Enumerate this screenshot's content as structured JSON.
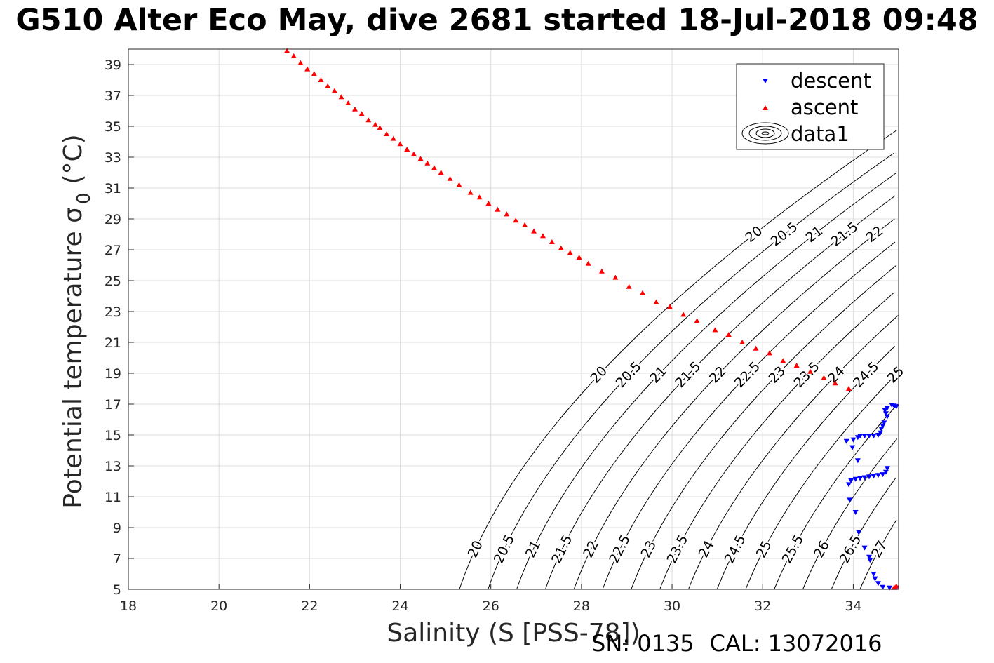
{
  "chart_data": {
    "type": "scatter",
    "title": "G510 Alter Eco May, dive 2681 started 18-Jul-2018 09:48",
    "xlabel": "Salinity (S [PSS-78])",
    "ylabel": "Potential temperature σ",
    "ylabel_sub": "0",
    "ylabel_unit": "(°C)",
    "xlim": [
      18,
      35
    ],
    "ylim": [
      5,
      40
    ],
    "xticks": [
      18,
      20,
      22,
      24,
      26,
      28,
      30,
      32,
      34
    ],
    "yticks": [
      5,
      7,
      9,
      11,
      13,
      15,
      17,
      19,
      21,
      23,
      25,
      27,
      29,
      31,
      33,
      35,
      37,
      39
    ],
    "grid": true,
    "legend_position": "top-right",
    "legend": [
      "descent",
      "ascent",
      "data1"
    ],
    "series": [
      {
        "name": "descent",
        "color": "#0000ff",
        "marker": "triangle-down",
        "points": [
          [
            34.85,
            16.95
          ],
          [
            34.9,
            16.9
          ],
          [
            34.95,
            16.85
          ],
          [
            34.75,
            16.75
          ],
          [
            34.7,
            16.6
          ],
          [
            34.72,
            16.4
          ],
          [
            34.75,
            16.2
          ],
          [
            34.68,
            15.8
          ],
          [
            34.65,
            15.6
          ],
          [
            34.62,
            15.4
          ],
          [
            34.6,
            15.15
          ],
          [
            34.55,
            15.0
          ],
          [
            34.45,
            14.95
          ],
          [
            34.35,
            14.95
          ],
          [
            34.25,
            14.95
          ],
          [
            34.15,
            14.95
          ],
          [
            34.1,
            14.85
          ],
          [
            34.0,
            14.7
          ],
          [
            33.85,
            14.6
          ],
          [
            33.98,
            14.2
          ],
          [
            34.1,
            13.35
          ],
          [
            34.75,
            12.85
          ],
          [
            34.72,
            12.6
          ],
          [
            34.65,
            12.45
          ],
          [
            34.55,
            12.4
          ],
          [
            34.45,
            12.35
          ],
          [
            34.35,
            12.3
          ],
          [
            34.25,
            12.25
          ],
          [
            34.15,
            12.2
          ],
          [
            34.05,
            12.15
          ],
          [
            33.95,
            12.05
          ],
          [
            33.9,
            11.8
          ],
          [
            33.92,
            10.8
          ],
          [
            34.05,
            10.0
          ],
          [
            34.12,
            8.7
          ],
          [
            34.25,
            7.7
          ],
          [
            34.35,
            7.1
          ],
          [
            34.37,
            6.9
          ],
          [
            34.45,
            6.0
          ],
          [
            34.48,
            5.7
          ],
          [
            34.55,
            5.4
          ],
          [
            34.65,
            5.15
          ],
          [
            34.8,
            5.1
          ],
          [
            34.95,
            5.1
          ]
        ]
      },
      {
        "name": "ascent",
        "color": "#ff0000",
        "marker": "triangle-up",
        "points": [
          [
            21.5,
            39.9
          ],
          [
            21.65,
            39.55
          ],
          [
            21.8,
            39.1
          ],
          [
            21.95,
            38.7
          ],
          [
            22.1,
            38.4
          ],
          [
            22.25,
            38.0
          ],
          [
            22.4,
            37.6
          ],
          [
            22.55,
            37.3
          ],
          [
            22.7,
            36.9
          ],
          [
            22.85,
            36.5
          ],
          [
            23.0,
            36.1
          ],
          [
            23.15,
            35.8
          ],
          [
            23.3,
            35.4
          ],
          [
            23.45,
            35.1
          ],
          [
            23.55,
            34.9
          ],
          [
            23.7,
            34.5
          ],
          [
            23.85,
            34.2
          ],
          [
            24.0,
            33.85
          ],
          [
            24.15,
            33.5
          ],
          [
            24.3,
            33.2
          ],
          [
            24.45,
            32.9
          ],
          [
            24.6,
            32.6
          ],
          [
            24.75,
            32.3
          ],
          [
            24.9,
            32.0
          ],
          [
            25.1,
            31.6
          ],
          [
            25.3,
            31.2
          ],
          [
            25.55,
            30.7
          ],
          [
            25.75,
            30.4
          ],
          [
            25.95,
            30.0
          ],
          [
            26.15,
            29.6
          ],
          [
            26.35,
            29.3
          ],
          [
            26.55,
            28.9
          ],
          [
            26.75,
            28.6
          ],
          [
            26.95,
            28.2
          ],
          [
            27.15,
            27.9
          ],
          [
            27.35,
            27.5
          ],
          [
            27.55,
            27.1
          ],
          [
            27.75,
            26.8
          ],
          [
            27.95,
            26.5
          ],
          [
            28.15,
            26.1
          ],
          [
            28.45,
            25.6
          ],
          [
            28.75,
            25.2
          ],
          [
            29.05,
            24.6
          ],
          [
            29.35,
            24.2
          ],
          [
            29.65,
            23.6
          ],
          [
            29.95,
            23.3
          ],
          [
            30.25,
            22.8
          ],
          [
            30.55,
            22.4
          ],
          [
            30.95,
            21.8
          ],
          [
            31.25,
            21.5
          ],
          [
            31.55,
            21.0
          ],
          [
            31.85,
            20.6
          ],
          [
            32.15,
            20.3
          ],
          [
            32.45,
            19.8
          ],
          [
            32.75,
            19.5
          ],
          [
            33.05,
            19.1
          ],
          [
            33.35,
            18.7
          ],
          [
            33.6,
            18.35
          ],
          [
            33.9,
            18.0
          ],
          [
            34.9,
            5.1
          ],
          [
            34.95,
            5.2
          ]
        ]
      }
    ],
    "contours": {
      "name": "data1",
      "levels": [
        20,
        20.5,
        21,
        21.5,
        22,
        22.5,
        23,
        23.5,
        24,
        24.5,
        25,
        25.5,
        26,
        26.5,
        27
      ],
      "labels": [
        "20",
        "20.5",
        "21",
        "21.5",
        "22",
        "22.5",
        "23",
        "23.5",
        "24",
        "24.5",
        "25",
        "25.5",
        "26",
        "26.5",
        "27"
      ],
      "bottom_labels": [
        "20",
        "20.5",
        "21",
        "21.5",
        "22",
        "22.5",
        "23",
        "23.5",
        "24",
        "24.5",
        "25",
        "25.5",
        "26",
        "26.5",
        "27"
      ],
      "middle_labels": [
        "20",
        "20.5",
        "21",
        "21.5",
        "22",
        "22.5",
        "23",
        "23.5",
        "24",
        "24.5",
        "25"
      ],
      "upper_labels": [
        "20",
        "20.5",
        "21",
        "21.5",
        "22"
      ]
    }
  },
  "footer": {
    "serial": "SN: 0135",
    "calibration": "CAL: 13072016"
  }
}
